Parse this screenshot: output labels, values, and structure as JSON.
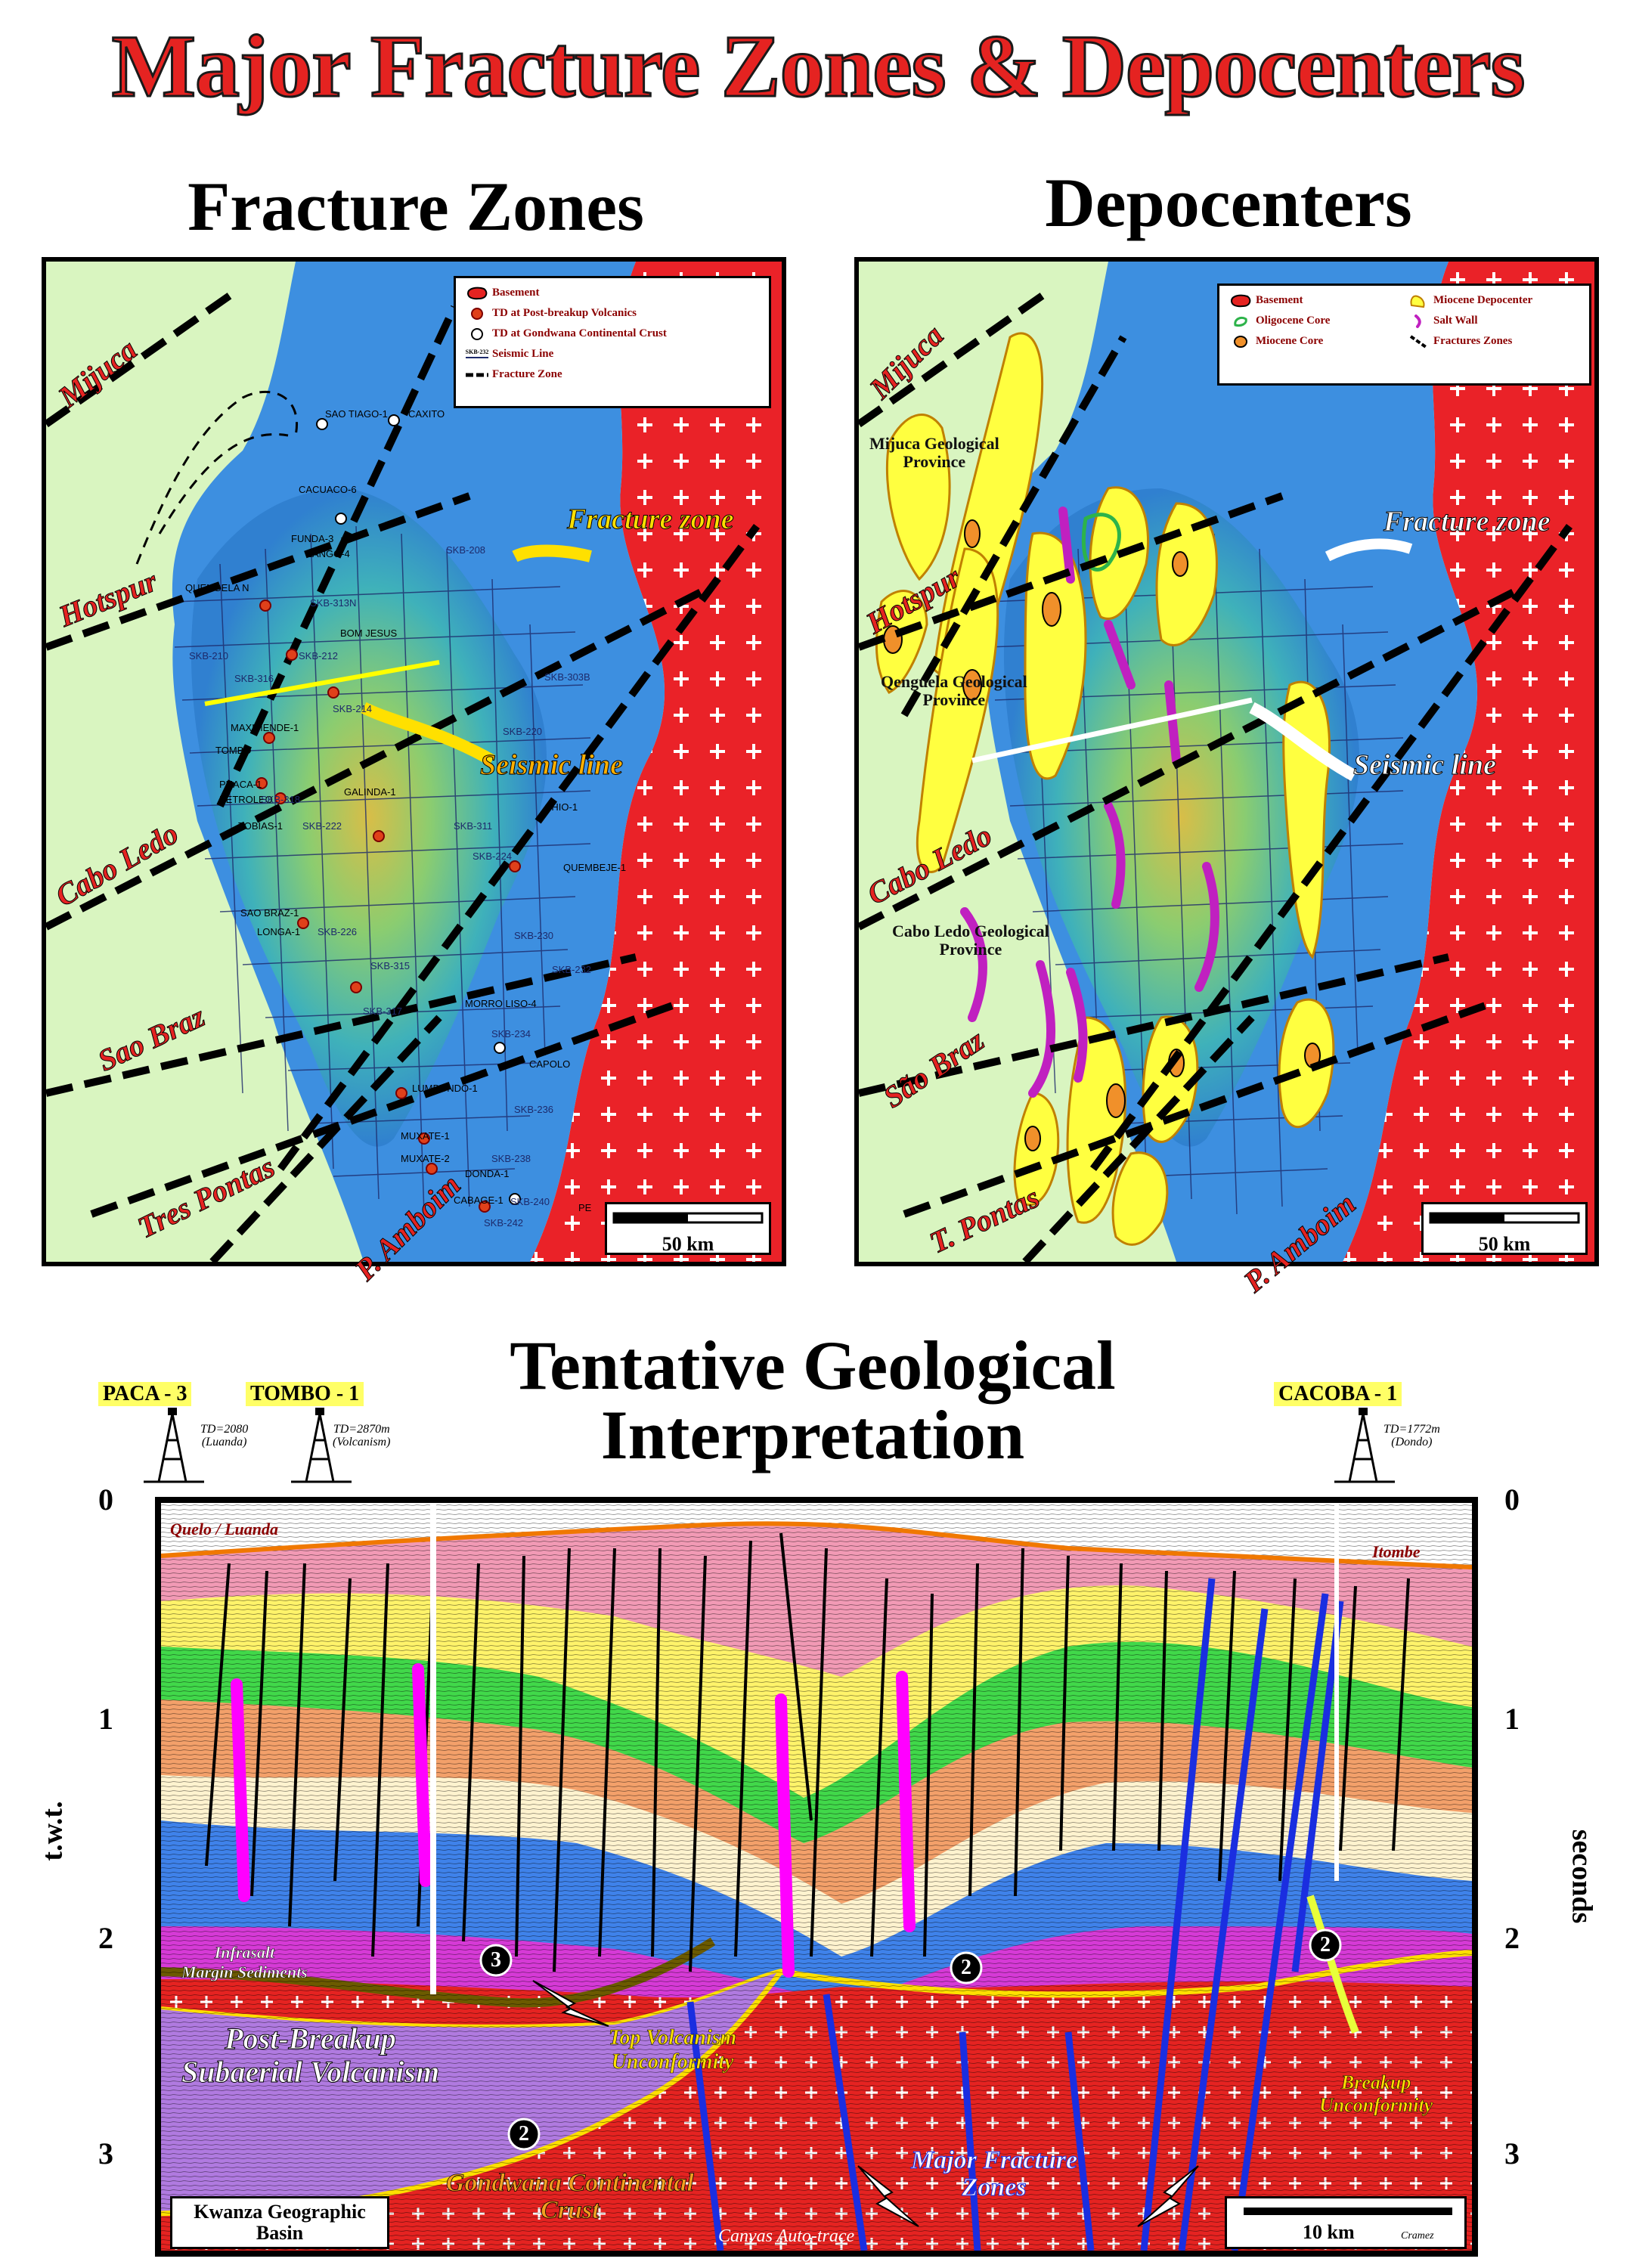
{
  "title": "Major Fracture Zones & Depocenters",
  "left_panel": {
    "title": "Fracture Zones",
    "legend": [
      {
        "icon": "basement-swatch-icon",
        "label": "Basement"
      },
      {
        "icon": "orange-dot-icon",
        "label": "TD at Post-breakup Volcanics"
      },
      {
        "icon": "white-dot-icon",
        "label": "TD at Gondwana Continental Crust"
      },
      {
        "icon": "seismic-line-icon",
        "icon_label": "SKB-232",
        "label": "Seismic Line"
      },
      {
        "icon": "fracture-zone-dash-icon",
        "label": "Fracture Zone"
      }
    ],
    "fracture_zones": [
      "Mijuca",
      "Hotspur",
      "Cabo Ledo",
      "Sao Braz",
      "Tres Pontas",
      "P. Amboim"
    ],
    "annotations": {
      "fracture": "Fracture zone",
      "seismic": "Seismic line"
    },
    "wells": [
      "SAO TIAGO-1",
      "CAXITO",
      "CACUACO-6",
      "FUNDA-3",
      "ZANGO-4",
      "QUENGELA N",
      "BOM JESUS",
      "MAXIMENDE-1",
      "TOMBO",
      "PUACA-1",
      "PETROLEO",
      "TOBIAS-1",
      "GALINDA-1",
      "CHIO-1",
      "QUEMBEJE-1",
      "SAO BRAZ-1",
      "LONGA-1",
      "MORRO LISO-4",
      "CAPOLO",
      "LUMBONDO-1",
      "MUXATE-1",
      "MUXATE-2",
      "DONDA-1",
      "CABAGE-1",
      "PE"
    ],
    "lines": [
      "SKB-208",
      "SKB-210",
      "SKB-212",
      "SKB-214",
      "SKB-220",
      "SKB-222",
      "SKB-224",
      "SKB-226",
      "SKB-230",
      "SKB-232",
      "SKB-234",
      "SKB-236",
      "SKB-238",
      "SKB-240",
      "SKB-242",
      "SKB-303B",
      "SKB-311",
      "SKB-313N",
      "SKB-315",
      "SKB-316",
      "SKB-317",
      "SKB-318"
    ],
    "scale": "50 km"
  },
  "right_panel": {
    "title": "Depocenters",
    "legend": [
      {
        "icon": "basement-swatch-icon",
        "label": "Basement"
      },
      {
        "icon": "oligocene-core-icon",
        "label": "Oligocene Core"
      },
      {
        "icon": "miocene-core-icon",
        "label": "Miocene Core"
      },
      {
        "icon": "miocene-depocenter-icon",
        "label": "Miocene Depocenter"
      },
      {
        "icon": "salt-wall-icon",
        "label": "Salt Wall"
      },
      {
        "icon": "fracture-zone-dash-icon",
        "label": "Fractures Zones"
      }
    ],
    "fracture_zones": [
      "Mijuca",
      "Hotspur",
      "Cabo Ledo",
      "São Braz",
      "T. Pontas",
      "P. Amboim"
    ],
    "provinces": [
      "Mijuca Geological\nProvince",
      "Qenguela Geological\nProvince",
      "Cabo Ledo Geological\nProvince"
    ],
    "annotations": {
      "fracture": "Fracture zone",
      "seismic": "Seismic line"
    },
    "scale": "50 km"
  },
  "section": {
    "title_line1": "Tentative Geological",
    "title_line2": "Interpretation",
    "wells": [
      {
        "name": "PACA - 3",
        "td": "TD=2080\n(Luanda)"
      },
      {
        "name": "TOMBO - 1",
        "td": "TD=2870m\n(Volcanism)"
      },
      {
        "name": "CACOBA - 1",
        "td": "TD=1772m\n(Dondo)"
      }
    ],
    "left_axis_label": "t.w.t.",
    "right_axis_label": "seconds",
    "ticks": [
      "0",
      "1",
      "2",
      "3"
    ],
    "labels": {
      "quelo": "Quelo / Luanda",
      "itombe": "Itombe",
      "infrasalt": "Infrasalt\nMargin Sediments",
      "post_breakup": "Post-Breakup\nSubaerial Volcanism",
      "top_volcanism": "Top Volcanism\nUnconformity",
      "gondwana": "Gondwana Continental\nCrust",
      "major_fracture": "Major Fracture\nZones",
      "breakup": "Breakup\nUnconformity",
      "canvas": "Canvas Auto-trace",
      "credit": "Cramez"
    },
    "markers": [
      "3",
      "2",
      "2",
      "2"
    ],
    "basin_box": "Kwanza Geographic\nBasin",
    "scale": "10 km"
  }
}
